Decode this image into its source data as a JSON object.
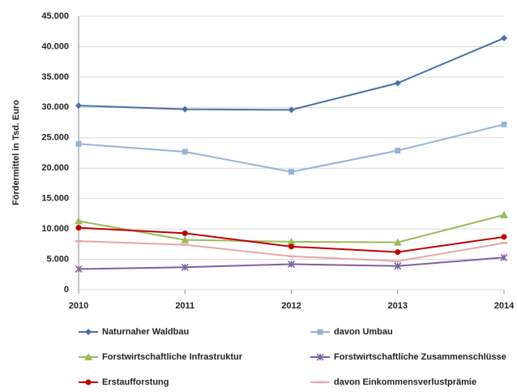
{
  "chart_data": {
    "type": "line",
    "ylabel": "Fördermittel in Tsd. Euro",
    "x": [
      2010,
      2011,
      2012,
      2013,
      2014
    ],
    "xlim": [
      2010,
      2014
    ],
    "xticks": [
      2010,
      2011,
      2012,
      2013,
      2014
    ],
    "ylim": [
      0,
      45000
    ],
    "yticks": [
      0,
      {
        "value": 5000,
        "label": "5.000"
      },
      {
        "value": 10000,
        "label": "10.000"
      },
      {
        "value": 15000,
        "label": "15.000"
      },
      {
        "value": 20000,
        "label": "20.000"
      },
      {
        "value": 25000,
        "label": "25.000"
      },
      {
        "value": 30000,
        "label": "30.000"
      },
      {
        "value": 35000,
        "label": "35.000"
      },
      {
        "value": 40000,
        "label": "40.000"
      },
      {
        "value": 45000,
        "label": "45.000"
      }
    ],
    "grid": true,
    "legend": "bottom",
    "series": [
      {
        "name": "Naturnaher Waldbau",
        "color": "#4a6fa5",
        "marker": "diamond",
        "values": [
          30300,
          29700,
          29600,
          34000,
          41400
        ]
      },
      {
        "name": "davon Umbau",
        "color": "#95b3d7",
        "marker": "square",
        "values": [
          24000,
          22700,
          19400,
          22900,
          27200
        ]
      },
      {
        "name": "Forstwirtschaftliche Infrastruktur",
        "color": "#9bbb59",
        "marker": "triangle",
        "values": [
          11300,
          8200,
          7900,
          7800,
          12300
        ]
      },
      {
        "name": "Forstwirtschaftliche Zusammenschlüsse",
        "color": "#7f5fa0",
        "marker": "cross",
        "values": [
          3400,
          3700,
          4200,
          3900,
          5300
        ]
      },
      {
        "name": "Erstaufforstung",
        "color": "#c00000",
        "marker": "circle",
        "values": [
          10200,
          9300,
          7100,
          6200,
          8700
        ]
      },
      {
        "name": "davon Einkommensverlustprämie",
        "color": "#e6a5a5",
        "marker": "dash",
        "values": [
          8000,
          7400,
          5500,
          4700,
          7700
        ]
      }
    ]
  }
}
